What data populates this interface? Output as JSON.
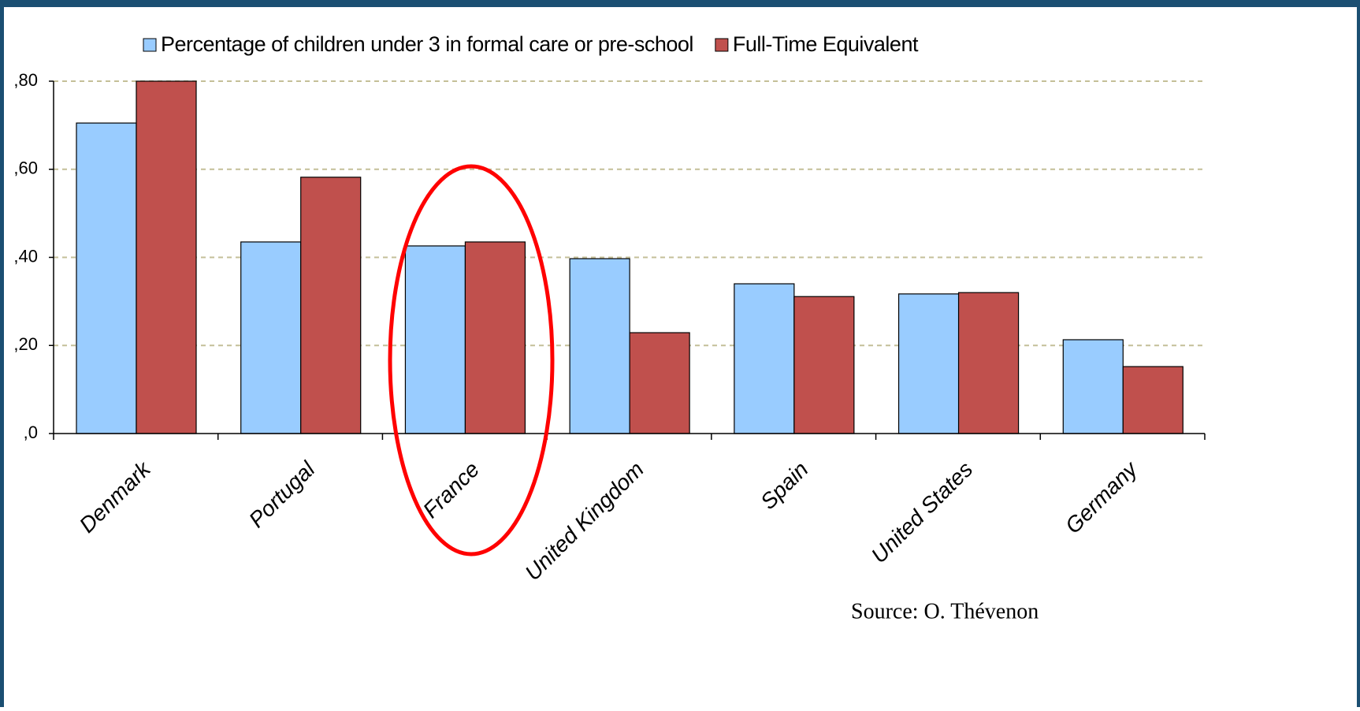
{
  "chart_data": {
    "type": "bar",
    "categories": [
      "Denmark",
      "Portugal",
      "France",
      "United Kingdom",
      "Spain",
      "United States",
      "Germany"
    ],
    "series": [
      {
        "name": "Percentage of children under 3 in formal care or pre-school",
        "color": "#99ccff",
        "values": [
          0.705,
          0.435,
          0.426,
          0.397,
          0.34,
          0.317,
          0.213
        ]
      },
      {
        "name": "Full-Time Equivalent",
        "color": "#c0504d",
        "values": [
          0.8,
          0.582,
          0.435,
          0.229,
          0.311,
          0.32,
          0.152
        ]
      }
    ],
    "ylim": [
      0,
      0.8
    ],
    "yticks": [
      {
        "value": 0,
        "label": ",0"
      },
      {
        "value": 0.2,
        "label": ",20"
      },
      {
        "value": 0.4,
        "label": ",40"
      },
      {
        "value": 0.6,
        "label": ",60"
      },
      {
        "value": 0.8,
        "label": ",80"
      }
    ],
    "grid": true,
    "legend": "top",
    "annotations": [
      "Source: O. Thévenon"
    ]
  }
}
